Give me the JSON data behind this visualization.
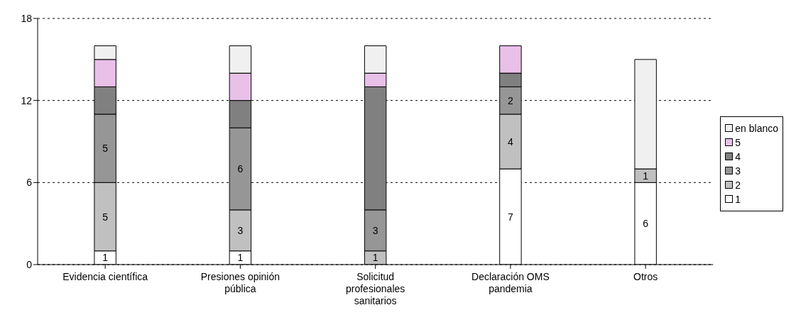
{
  "chart_data": {
    "type": "bar",
    "stacked": true,
    "categories": [
      "Evidencia científica",
      "Presiones opinión pública",
      "Solicitud profesionales sanitarios",
      "Declaración OMS pandemia",
      "Otros"
    ],
    "series": [
      {
        "name": "1",
        "color": "#ffffff",
        "values": [
          1,
          1,
          0,
          7,
          6
        ],
        "value_labels": [
          "1",
          "1",
          null,
          "7",
          "6"
        ]
      },
      {
        "name": "2",
        "color": "#c0c0c0",
        "values": [
          5,
          3,
          1,
          4,
          1
        ],
        "value_labels": [
          "5",
          "3",
          "1",
          "4",
          "1"
        ]
      },
      {
        "name": "3",
        "color": "#969696",
        "values": [
          5,
          6,
          3,
          2,
          0
        ],
        "value_labels": [
          "5",
          "6",
          "3",
          "2",
          null
        ]
      },
      {
        "name": "4",
        "color": "#808080",
        "values": [
          2,
          2,
          9,
          1,
          0
        ]
      },
      {
        "name": "5",
        "color": "#e8c0e8",
        "values": [
          2,
          2,
          1,
          2,
          0
        ]
      },
      {
        "name": "en blanco",
        "color": "#f0f0f0",
        "values": [
          1,
          2,
          2,
          0,
          8
        ]
      }
    ],
    "ylim": [
      0,
      18
    ],
    "yticks": [
      0,
      6,
      12,
      18
    ],
    "grid": "y",
    "legend": "right"
  }
}
